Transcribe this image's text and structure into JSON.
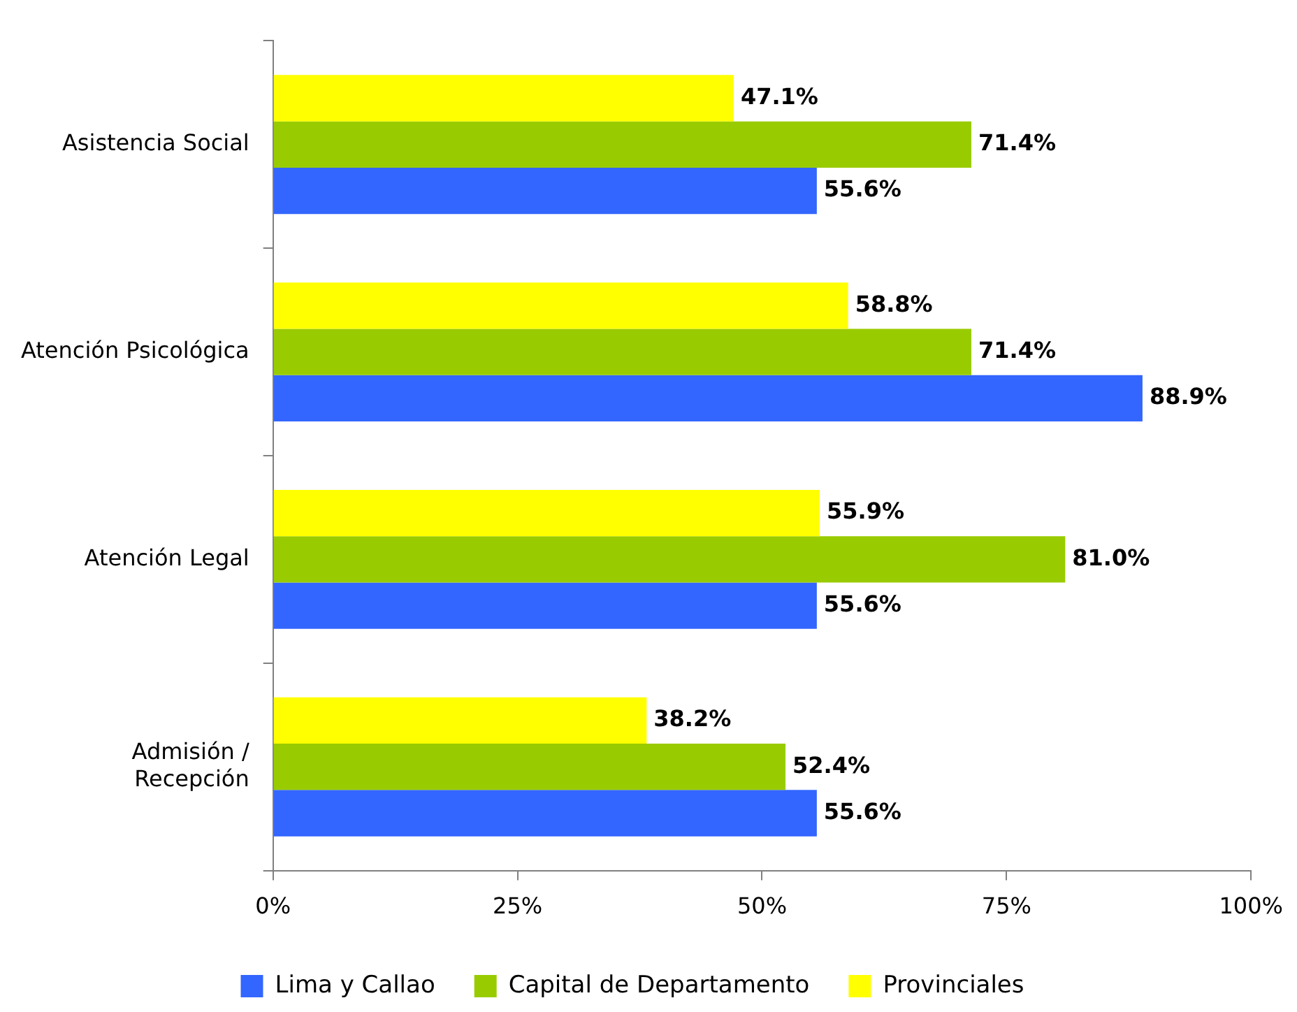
{
  "chart_data": {
    "type": "bar",
    "orientation": "horizontal",
    "categories": [
      "Asistencia Social",
      "Atención Psicológica",
      "Atención Legal",
      "Admisión / Recepción"
    ],
    "series": [
      {
        "name": "Lima y Callao",
        "color": "#3366ff",
        "values": [
          55.6,
          88.9,
          55.6,
          55.6
        ],
        "value_labels": [
          "55.6%",
          "88.9%",
          "55.6%",
          "55.6%"
        ]
      },
      {
        "name": "Capital de Departamento",
        "color": "#99cc00",
        "values": [
          71.4,
          71.4,
          81.0,
          52.4
        ],
        "value_labels": [
          "71.4%",
          "71.4%",
          "81.0%",
          "52.4%"
        ]
      },
      {
        "name": "Provinciales",
        "color": "#ffff00",
        "values": [
          47.1,
          58.8,
          55.9,
          38.2
        ],
        "value_labels": [
          "47.1%",
          "58.8%",
          "55.9%",
          "38.2%"
        ]
      }
    ],
    "xlim": [
      0,
      100
    ],
    "xticks": [
      {
        "value": 0,
        "label": "0%"
      },
      {
        "value": 25,
        "label": "25%"
      },
      {
        "value": 50,
        "label": "50%"
      },
      {
        "value": 75,
        "label": "75%"
      },
      {
        "value": 100,
        "label": "100%"
      }
    ],
    "grid": false,
    "legend": "bottom"
  }
}
